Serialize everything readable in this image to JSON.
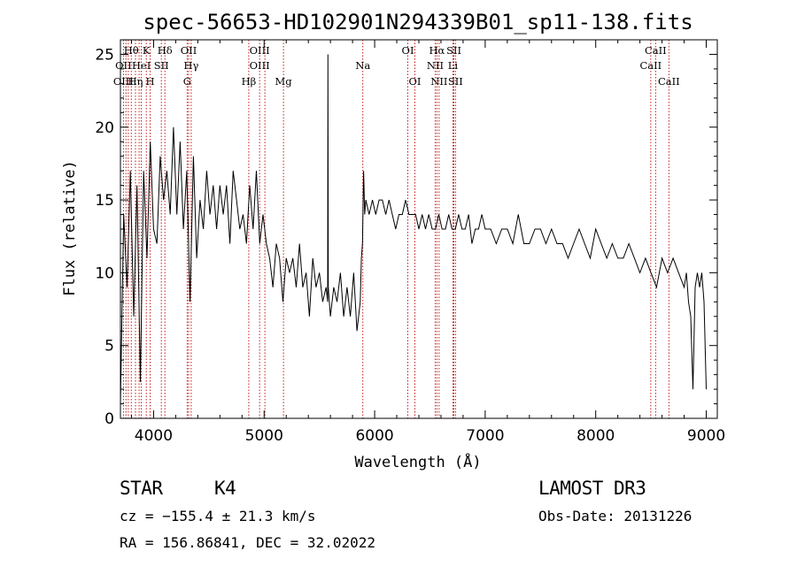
{
  "chart_data": {
    "type": "line",
    "title": "spec-56653-HD102901N294339B01_sp11-138.fits",
    "xlabel": "Wavelength (Å)",
    "ylabel": "Flux (relative)",
    "xlim": [
      3700,
      9100
    ],
    "ylim": [
      0,
      26
    ],
    "xticks": [
      4000,
      5000,
      6000,
      7000,
      8000,
      9000
    ],
    "xtick_labels": [
      "4000",
      "5000",
      "6000",
      "7000",
      "8000",
      "9000"
    ],
    "yticks": [
      0,
      5,
      10,
      15,
      20,
      25
    ],
    "ytick_labels": [
      "0",
      "5",
      "10",
      "15",
      "20",
      "25"
    ],
    "series": [
      {
        "name": "flux",
        "x": [
          3700,
          3730,
          3760,
          3790,
          3820,
          3850,
          3880,
          3910,
          3940,
          3970,
          4000,
          4030,
          4060,
          4090,
          4120,
          4150,
          4180,
          4210,
          4240,
          4270,
          4300,
          4330,
          4360,
          4390,
          4420,
          4450,
          4480,
          4510,
          4540,
          4570,
          4600,
          4630,
          4660,
          4690,
          4720,
          4750,
          4780,
          4810,
          4840,
          4870,
          4900,
          4930,
          4960,
          4990,
          5020,
          5050,
          5080,
          5110,
          5140,
          5170,
          5200,
          5230,
          5260,
          5290,
          5320,
          5350,
          5380,
          5410,
          5440,
          5470,
          5500,
          5530,
          5560,
          5575,
          5577,
          5580,
          5600,
          5630,
          5660,
          5690,
          5720,
          5750,
          5780,
          5810,
          5840,
          5870,
          5880,
          5890,
          5900,
          5910,
          5920,
          5950,
          5980,
          6010,
          6040,
          6070,
          6100,
          6130,
          6160,
          6190,
          6220,
          6250,
          6280,
          6310,
          6340,
          6370,
          6400,
          6430,
          6460,
          6490,
          6520,
          6550,
          6580,
          6610,
          6640,
          6670,
          6700,
          6730,
          6760,
          6790,
          6820,
          6850,
          6880,
          6910,
          6940,
          6970,
          7000,
          7050,
          7100,
          7150,
          7200,
          7250,
          7300,
          7350,
          7400,
          7450,
          7500,
          7550,
          7600,
          7650,
          7700,
          7750,
          7800,
          7850,
          7900,
          7950,
          8000,
          8050,
          8100,
          8150,
          8200,
          8250,
          8300,
          8350,
          8400,
          8450,
          8500,
          8550,
          8600,
          8650,
          8700,
          8750,
          8800,
          8820,
          8840,
          8860,
          8880,
          8900,
          8920,
          8940,
          8960,
          8980,
          9000
        ],
        "values": [
          1,
          14,
          9,
          17,
          7,
          16,
          2.5,
          17,
          11,
          19,
          13,
          12,
          18,
          15,
          17,
          14,
          20,
          14,
          19,
          13,
          17,
          8,
          18,
          11,
          15,
          13,
          17,
          14,
          16,
          13,
          16,
          14,
          16,
          12,
          17,
          15,
          13,
          14,
          12,
          16,
          13,
          17,
          12,
          14,
          12,
          11,
          9,
          12,
          11,
          8,
          11,
          10,
          11,
          9,
          12,
          9,
          10,
          7,
          11,
          9,
          10,
          8,
          9,
          8,
          25,
          9,
          7,
          9,
          8,
          10,
          7,
          9,
          7,
          10,
          6,
          8,
          11,
          12,
          17,
          14,
          15,
          14,
          15,
          14,
          15,
          15,
          14,
          15,
          14,
          13,
          14,
          14,
          15,
          14,
          14,
          14,
          13,
          14,
          13,
          14,
          13,
          13,
          14,
          13,
          13,
          14,
          13,
          13,
          14,
          13,
          13,
          14,
          12,
          13,
          13,
          14,
          13,
          13,
          12,
          13,
          13,
          12,
          14,
          12,
          12,
          13,
          13,
          12,
          13,
          12,
          12,
          11,
          12,
          13,
          12,
          11,
          13,
          12,
          11,
          12,
          11,
          11,
          12,
          11,
          10,
          11,
          10,
          9,
          11,
          10,
          11,
          10,
          9,
          10,
          8,
          7,
          2,
          9,
          10,
          9,
          10,
          8,
          2
        ]
      }
    ],
    "annotations": [
      {
        "label": "Hθ",
        "x": 3798,
        "row": 1
      },
      {
        "label": "OII",
        "x": 3727,
        "row": 2
      },
      {
        "label": "OIII",
        "x": 3727,
        "row": 3
      },
      {
        "label": "Hη",
        "x": 3836,
        "row": 3
      },
      {
        "label": "HeI",
        "x": 3889,
        "row": 2
      },
      {
        "label": "K",
        "x": 3934,
        "row": 1
      },
      {
        "label": "H",
        "x": 3969,
        "row": 3
      },
      {
        "label": "SII",
        "x": 4070,
        "row": 2
      },
      {
        "label": "Hδ",
        "x": 4102,
        "row": 1
      },
      {
        "label": "OII",
        "x": 4317,
        "row": 1
      },
      {
        "label": "Hγ",
        "x": 4340,
        "row": 2
      },
      {
        "label": "G",
        "x": 4304,
        "row": 3
      },
      {
        "label": "Hβ",
        "x": 4861,
        "row": 3
      },
      {
        "label": "OIII",
        "x": 4959,
        "row": 1
      },
      {
        "label": "OIII",
        "x": 4959,
        "row": 2
      },
      {
        "label": "Mg",
        "x": 5175,
        "row": 3
      },
      {
        "label": "Na",
        "x": 5893,
        "row": 2
      },
      {
        "label": "OI",
        "x": 6300,
        "row": 1
      },
      {
        "label": "OI",
        "x": 6364,
        "row": 3
      },
      {
        "label": "Hα",
        "x": 6563,
        "row": 1
      },
      {
        "label": "NII",
        "x": 6548,
        "row": 2
      },
      {
        "label": "NII",
        "x": 6583,
        "row": 3
      },
      {
        "label": "SII",
        "x": 6717,
        "row": 1
      },
      {
        "label": "Li",
        "x": 6708,
        "row": 2
      },
      {
        "label": "SII",
        "x": 6731,
        "row": 3
      },
      {
        "label": "CaII",
        "x": 8542,
        "row": 1
      },
      {
        "label": "CaII",
        "x": 8498,
        "row": 2
      },
      {
        "label": "CaII",
        "x": 8662,
        "row": 3
      }
    ],
    "marker_lines": [
      3727,
      3750,
      3771,
      3798,
      3836,
      3869,
      3889,
      3934,
      3969,
      4070,
      4102,
      4304,
      4317,
      4340,
      4861,
      4959,
      5007,
      5175,
      5893,
      6300,
      6364,
      6548,
      6563,
      6583,
      6708,
      6717,
      6731,
      8498,
      8542,
      8662
    ],
    "marker_color": "#c00000",
    "line_color": "#000000"
  },
  "info": {
    "object_type": "STAR",
    "subclass": "K4",
    "survey": "LAMOST DR3",
    "redshift": "cz = −155.4 ± 21.3 km/s",
    "obs_date": "Obs-Date: 20131226",
    "coords": "RA = 156.86841, DEC =  32.02022"
  }
}
